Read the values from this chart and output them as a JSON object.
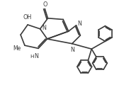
{
  "bg_color": "#ffffff",
  "line_color": "#3a3a3a",
  "line_width": 1.2,
  "font_size": 5.8,
  "xlim": [
    0,
    10
  ],
  "ylim": [
    0,
    7.5
  ]
}
